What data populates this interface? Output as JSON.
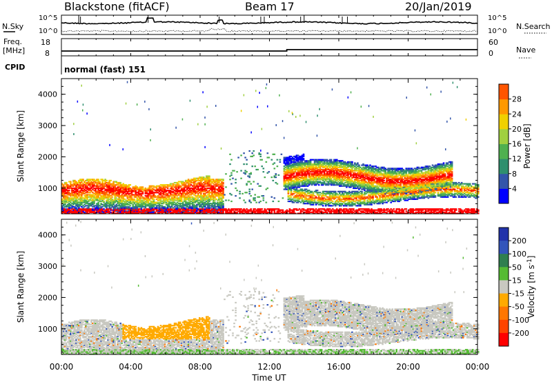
{
  "header": {
    "radar": "Blackstone (fitACF)",
    "beam": "Beam 17",
    "date": "20/Jan/2019"
  },
  "panels_left": {
    "nsky": "N.Sky",
    "freq": "Freq.",
    "freq_unit": "[MHz]",
    "cpid": "CPID"
  },
  "panels_right": {
    "nsearch": "N.Search",
    "nave": "Nave"
  },
  "noise_axis": {
    "top": "10^5",
    "bottom": "10^0"
  },
  "freq_axis": {
    "top": "18",
    "bottom": "8"
  },
  "nave_axis": {
    "top": "60",
    "bottom": "0"
  },
  "cpid_text": "normal (fast) 151",
  "colors": {
    "power": [
      "#0000ff",
      "#3355aa",
      "#2f8f6e",
      "#4fb04f",
      "#a0d040",
      "#f0d000",
      "#ff9900",
      "#ff5500",
      "#ff0000"
    ],
    "velocity": [
      "#2233aa",
      "#3355bb",
      "#2f7f4f",
      "#55bb33",
      "#c8c8c0",
      "#ffaa00",
      "#ff7700",
      "#ff4400",
      "#ff0000"
    ]
  },
  "chart_data": [
    {
      "type": "heatmap",
      "title": "",
      "xlabel": "Time UT",
      "ylabel": "Slant Range [km]",
      "xticks": [
        "00:00",
        "04:00",
        "08:00",
        "12:00",
        "16:00",
        "20:00",
        "00:00"
      ],
      "yticks": [
        "1000",
        "2000",
        "3000",
        "4000"
      ],
      "xlim": [
        0,
        24
      ],
      "ylim": [
        180,
        4500
      ],
      "colorbar": {
        "label": "Power [dB]",
        "ticks": [
          "4",
          "8",
          "12",
          "16",
          "20",
          "24",
          "28"
        ],
        "range": [
          0,
          30
        ]
      },
      "features": [
        {
          "t_start": 0,
          "t_end": 9.3,
          "r_low": 180,
          "r_high": 1300,
          "level": "high"
        },
        {
          "t_start": 9.3,
          "t_end": 12.5,
          "r_low": 500,
          "r_high": 2200,
          "level": "low"
        },
        {
          "t_start": 12.8,
          "t_end": 22.5,
          "r_low": 900,
          "r_high": 2000,
          "level": "high"
        },
        {
          "t_start": 13.0,
          "t_end": 24,
          "r_low": 400,
          "r_high": 1100,
          "level": "medium"
        }
      ]
    },
    {
      "type": "heatmap",
      "title": "",
      "xlabel": "Time UT",
      "ylabel": "Slant Range [km]",
      "xticks": [
        "00:00",
        "04:00",
        "08:00",
        "12:00",
        "16:00",
        "20:00",
        "00:00"
      ],
      "yticks": [
        "1000",
        "2000",
        "3000",
        "4000"
      ],
      "xlim": [
        0,
        24
      ],
      "ylim": [
        180,
        4500
      ],
      "colorbar": {
        "label": "Velocity [m s^-1]",
        "ticks": [
          "200",
          "100",
          "50",
          "15",
          "-15",
          "-50",
          "-100",
          "-200"
        ],
        "range": [
          -250,
          250
        ]
      },
      "features": [
        {
          "t_start": 0,
          "t_end": 9.3,
          "r_low": 180,
          "r_high": 1300,
          "velocity": "near-zero"
        },
        {
          "t_start": 3.5,
          "t_end": 8.5,
          "r_low": 700,
          "r_high": 1400,
          "velocity": "-50"
        },
        {
          "t_start": 12.8,
          "t_end": 22.5,
          "r_low": 900,
          "r_high": 2000,
          "velocity": "near-zero"
        }
      ]
    }
  ]
}
